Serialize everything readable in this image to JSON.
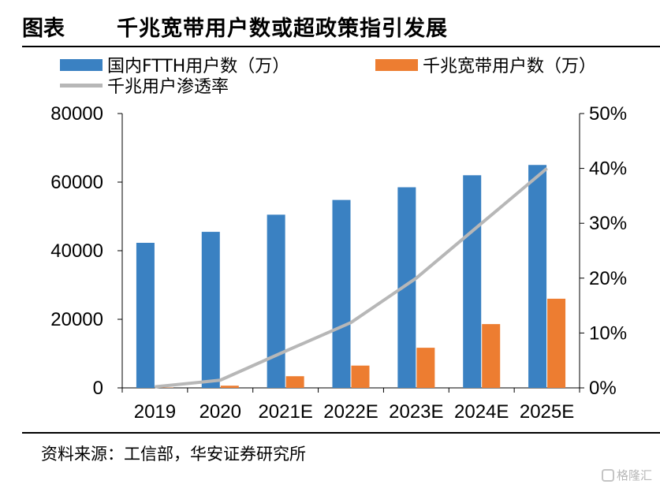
{
  "header": {
    "label": "图表",
    "title": "千兆宽带用户数或超政策指引发展"
  },
  "source_text": "资料来源：工信部，华安证券研究所",
  "watermark": "格隆汇",
  "colors": {
    "ftth": "#3a81c2",
    "gigabit": "#ed7d31",
    "rate": "#b7b7b7"
  },
  "chart_data": {
    "type": "bar",
    "title": "",
    "categories": [
      "2019",
      "2020",
      "2021E",
      "2022E",
      "2023E",
      "2024E",
      "2025E"
    ],
    "series": [
      {
        "name": "国内FTTH用户数（万）",
        "type": "bar",
        "axis": "left",
        "values": [
          42300,
          45500,
          50500,
          54800,
          58500,
          62000,
          65000
        ]
      },
      {
        "name": "千兆宽带用户数（万）",
        "type": "bar",
        "axis": "left",
        "values": [
          90,
          640,
          3400,
          6500,
          11700,
          18600,
          26000
        ]
      },
      {
        "name": "千兆用户渗透率",
        "type": "line",
        "axis": "right",
        "values": [
          0.2,
          1.4,
          6.7,
          11.9,
          20.0,
          30.0,
          40.0
        ]
      }
    ],
    "ylim_left": [
      0,
      80000
    ],
    "yticks_left": [
      "0",
      "20000",
      "40000",
      "60000",
      "80000"
    ],
    "ylim_right": [
      0,
      50
    ],
    "yticks_right": [
      "0%",
      "10%",
      "20%",
      "30%",
      "40%",
      "50%"
    ],
    "grid": false,
    "legend_position": "top"
  }
}
